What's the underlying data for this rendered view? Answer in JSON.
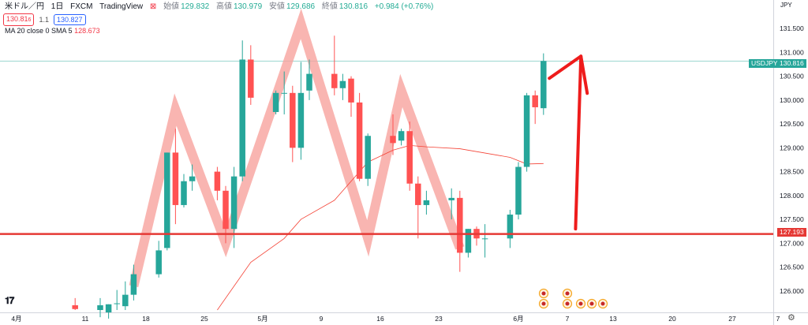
{
  "header": {
    "symbol": "米ドル／円",
    "interval": "1日",
    "exchange": "FXCM",
    "source": "TradingView",
    "open_label": "始値",
    "open_value": "129.832",
    "high_label": "高値",
    "high_value": "130.979",
    "low_label": "安値",
    "low_value": "129.686",
    "close_label": "終値",
    "close_value": "130.816",
    "change": "+0.984 (+0.76%)",
    "sell_price": "130.81",
    "sell_suffix": "6",
    "spread": "1.1",
    "buy_price": "130.827",
    "indicator_label": "MA 20 close 0 SMA 5",
    "indicator_value": "128.673"
  },
  "axis": {
    "currency": "JPY",
    "symbol_badge": "USDJPY",
    "price_badge": "130.816",
    "line_badge": "127.193"
  },
  "colors": {
    "up": "#26a69a",
    "down": "#ff5252",
    "ma": "#f44336",
    "pattern": "#f8a39e",
    "support": "#e53935",
    "arrow": "#ee1c1c",
    "current_price": "#26a69a"
  },
  "chart_data": {
    "type": "candlestick",
    "y_axis": {
      "min": 125.6,
      "max": 131.85,
      "ticks": [
        "126.000",
        "126.500",
        "127.000",
        "127.500",
        "128.000",
        "128.500",
        "129.000",
        "129.500",
        "130.000",
        "130.500",
        "131.000",
        "131.500"
      ]
    },
    "x_ticks": [
      "4月",
      "11",
      "18",
      "25",
      "5月",
      "9",
      "16",
      "23",
      "6月",
      "7",
      "13",
      "20",
      "27",
      "7"
    ],
    "candles": [
      {
        "d": "04-08",
        "o": 125.7,
        "h": 125.85,
        "l": 125.6,
        "c": 125.62
      },
      {
        "d": "04-11",
        "o": 125.6,
        "h": 125.85,
        "l": 125.45,
        "c": 125.7
      },
      {
        "d": "04-12",
        "o": 125.55,
        "h": 125.72,
        "l": 125.42,
        "c": 125.72
      },
      {
        "d": "04-13",
        "o": 125.74,
        "h": 126.02,
        "l": 125.6,
        "c": 125.74
      },
      {
        "d": "04-14",
        "o": 125.68,
        "h": 126.2,
        "l": 125.6,
        "c": 125.92
      },
      {
        "d": "04-15",
        "o": 125.92,
        "h": 126.55,
        "l": 125.8,
        "c": 126.35
      },
      {
        "d": "04-18",
        "o": 126.35,
        "h": 127.05,
        "l": 126.28,
        "c": 126.85
      },
      {
        "d": "04-19",
        "o": 126.9,
        "h": 128.9,
        "l": 126.85,
        "c": 128.9
      },
      {
        "d": "04-20",
        "o": 128.9,
        "h": 129.4,
        "l": 127.4,
        "c": 127.8
      },
      {
        "d": "04-21",
        "o": 127.8,
        "h": 128.45,
        "l": 127.75,
        "c": 128.3
      },
      {
        "d": "04-22",
        "o": 128.3,
        "h": 128.65,
        "l": 128.1,
        "c": 128.4
      },
      {
        "d": "04-25",
        "o": 128.5,
        "h": 128.6,
        "l": 127.9,
        "c": 128.1
      },
      {
        "d": "04-26",
        "o": 128.1,
        "h": 128.2,
        "l": 127.0,
        "c": 127.3
      },
      {
        "d": "04-27",
        "o": 127.3,
        "h": 128.6,
        "l": 126.9,
        "c": 128.4
      },
      {
        "d": "04-28",
        "o": 128.4,
        "h": 131.25,
        "l": 128.3,
        "c": 130.85
      },
      {
        "d": "04-29",
        "o": 130.85,
        "h": 131.15,
        "l": 129.9,
        "c": 130.05
      },
      {
        "d": "05-02",
        "o": 129.75,
        "h": 130.2,
        "l": 129.7,
        "c": 130.15
      },
      {
        "d": "05-03",
        "o": 130.15,
        "h": 130.6,
        "l": 129.7,
        "c": 130.15
      },
      {
        "d": "05-04",
        "o": 130.15,
        "h": 130.3,
        "l": 128.7,
        "c": 129.0
      },
      {
        "d": "05-05",
        "o": 129.0,
        "h": 130.8,
        "l": 128.75,
        "c": 130.15
      },
      {
        "d": "05-06",
        "o": 130.2,
        "h": 130.85,
        "l": 130.0,
        "c": 130.55
      },
      {
        "d": "05-09",
        "o": 130.55,
        "h": 131.35,
        "l": 130.1,
        "c": 130.25
      },
      {
        "d": "05-10",
        "o": 130.25,
        "h": 130.55,
        "l": 130.0,
        "c": 130.4
      },
      {
        "d": "05-11",
        "o": 130.45,
        "h": 130.5,
        "l": 129.65,
        "c": 129.95
      },
      {
        "d": "05-12",
        "o": 129.95,
        "h": 130.15,
        "l": 128.3,
        "c": 128.35
      },
      {
        "d": "05-13",
        "o": 128.35,
        "h": 129.3,
        "l": 128.2,
        "c": 129.25
      },
      {
        "d": "05-16",
        "o": 129.25,
        "h": 129.7,
        "l": 128.85,
        "c": 129.1
      },
      {
        "d": "05-17",
        "o": 129.15,
        "h": 129.4,
        "l": 129.05,
        "c": 129.35
      },
      {
        "d": "05-18",
        "o": 129.35,
        "h": 129.55,
        "l": 128.1,
        "c": 128.25
      },
      {
        "d": "05-19",
        "o": 128.25,
        "h": 128.4,
        "l": 127.1,
        "c": 127.8
      },
      {
        "d": "05-20",
        "o": 127.8,
        "h": 128.1,
        "l": 127.6,
        "c": 127.9
      },
      {
        "d": "05-23",
        "o": 127.9,
        "h": 128.15,
        "l": 127.5,
        "c": 127.95
      },
      {
        "d": "05-24",
        "o": 127.95,
        "h": 128.1,
        "l": 126.4,
        "c": 126.8
      },
      {
        "d": "05-25",
        "o": 126.8,
        "h": 127.3,
        "l": 126.7,
        "c": 127.3
      },
      {
        "d": "05-26",
        "o": 127.3,
        "h": 127.35,
        "l": 126.95,
        "c": 127.1
      },
      {
        "d": "05-27",
        "o": 127.1,
        "h": 127.4,
        "l": 126.7,
        "c": 127.1
      },
      {
        "d": "05-30",
        "o": 127.1,
        "h": 127.7,
        "l": 126.9,
        "c": 127.6
      },
      {
        "d": "05-31",
        "o": 127.6,
        "h": 128.7,
        "l": 127.5,
        "c": 128.6
      },
      {
        "d": "06-01",
        "o": 128.6,
        "h": 130.15,
        "l": 128.5,
        "c": 130.1
      },
      {
        "d": "06-02",
        "o": 130.1,
        "h": 130.2,
        "l": 129.5,
        "c": 129.85
      },
      {
        "d": "06-03",
        "o": 129.83,
        "h": 130.98,
        "l": 129.69,
        "c": 130.82
      }
    ],
    "moving_average": {
      "name": "MA 20",
      "points": [
        [
          "04-25",
          125.6
        ],
        [
          "04-27",
          126.1
        ],
        [
          "04-29",
          126.6
        ],
        [
          "05-03",
          127.1
        ],
        [
          "05-05",
          127.5
        ],
        [
          "05-09",
          127.9
        ],
        [
          "05-11",
          128.3
        ],
        [
          "05-13",
          128.7
        ],
        [
          "05-16",
          128.95
        ],
        [
          "05-18",
          129.05
        ],
        [
          "05-20",
          129.02
        ],
        [
          "05-24",
          128.98
        ],
        [
          "05-26",
          128.92
        ],
        [
          "05-30",
          128.8
        ],
        [
          "06-01",
          128.66
        ],
        [
          "06-03",
          128.67
        ]
      ]
    },
    "support_level": 127.193,
    "current_price": 130.816
  }
}
